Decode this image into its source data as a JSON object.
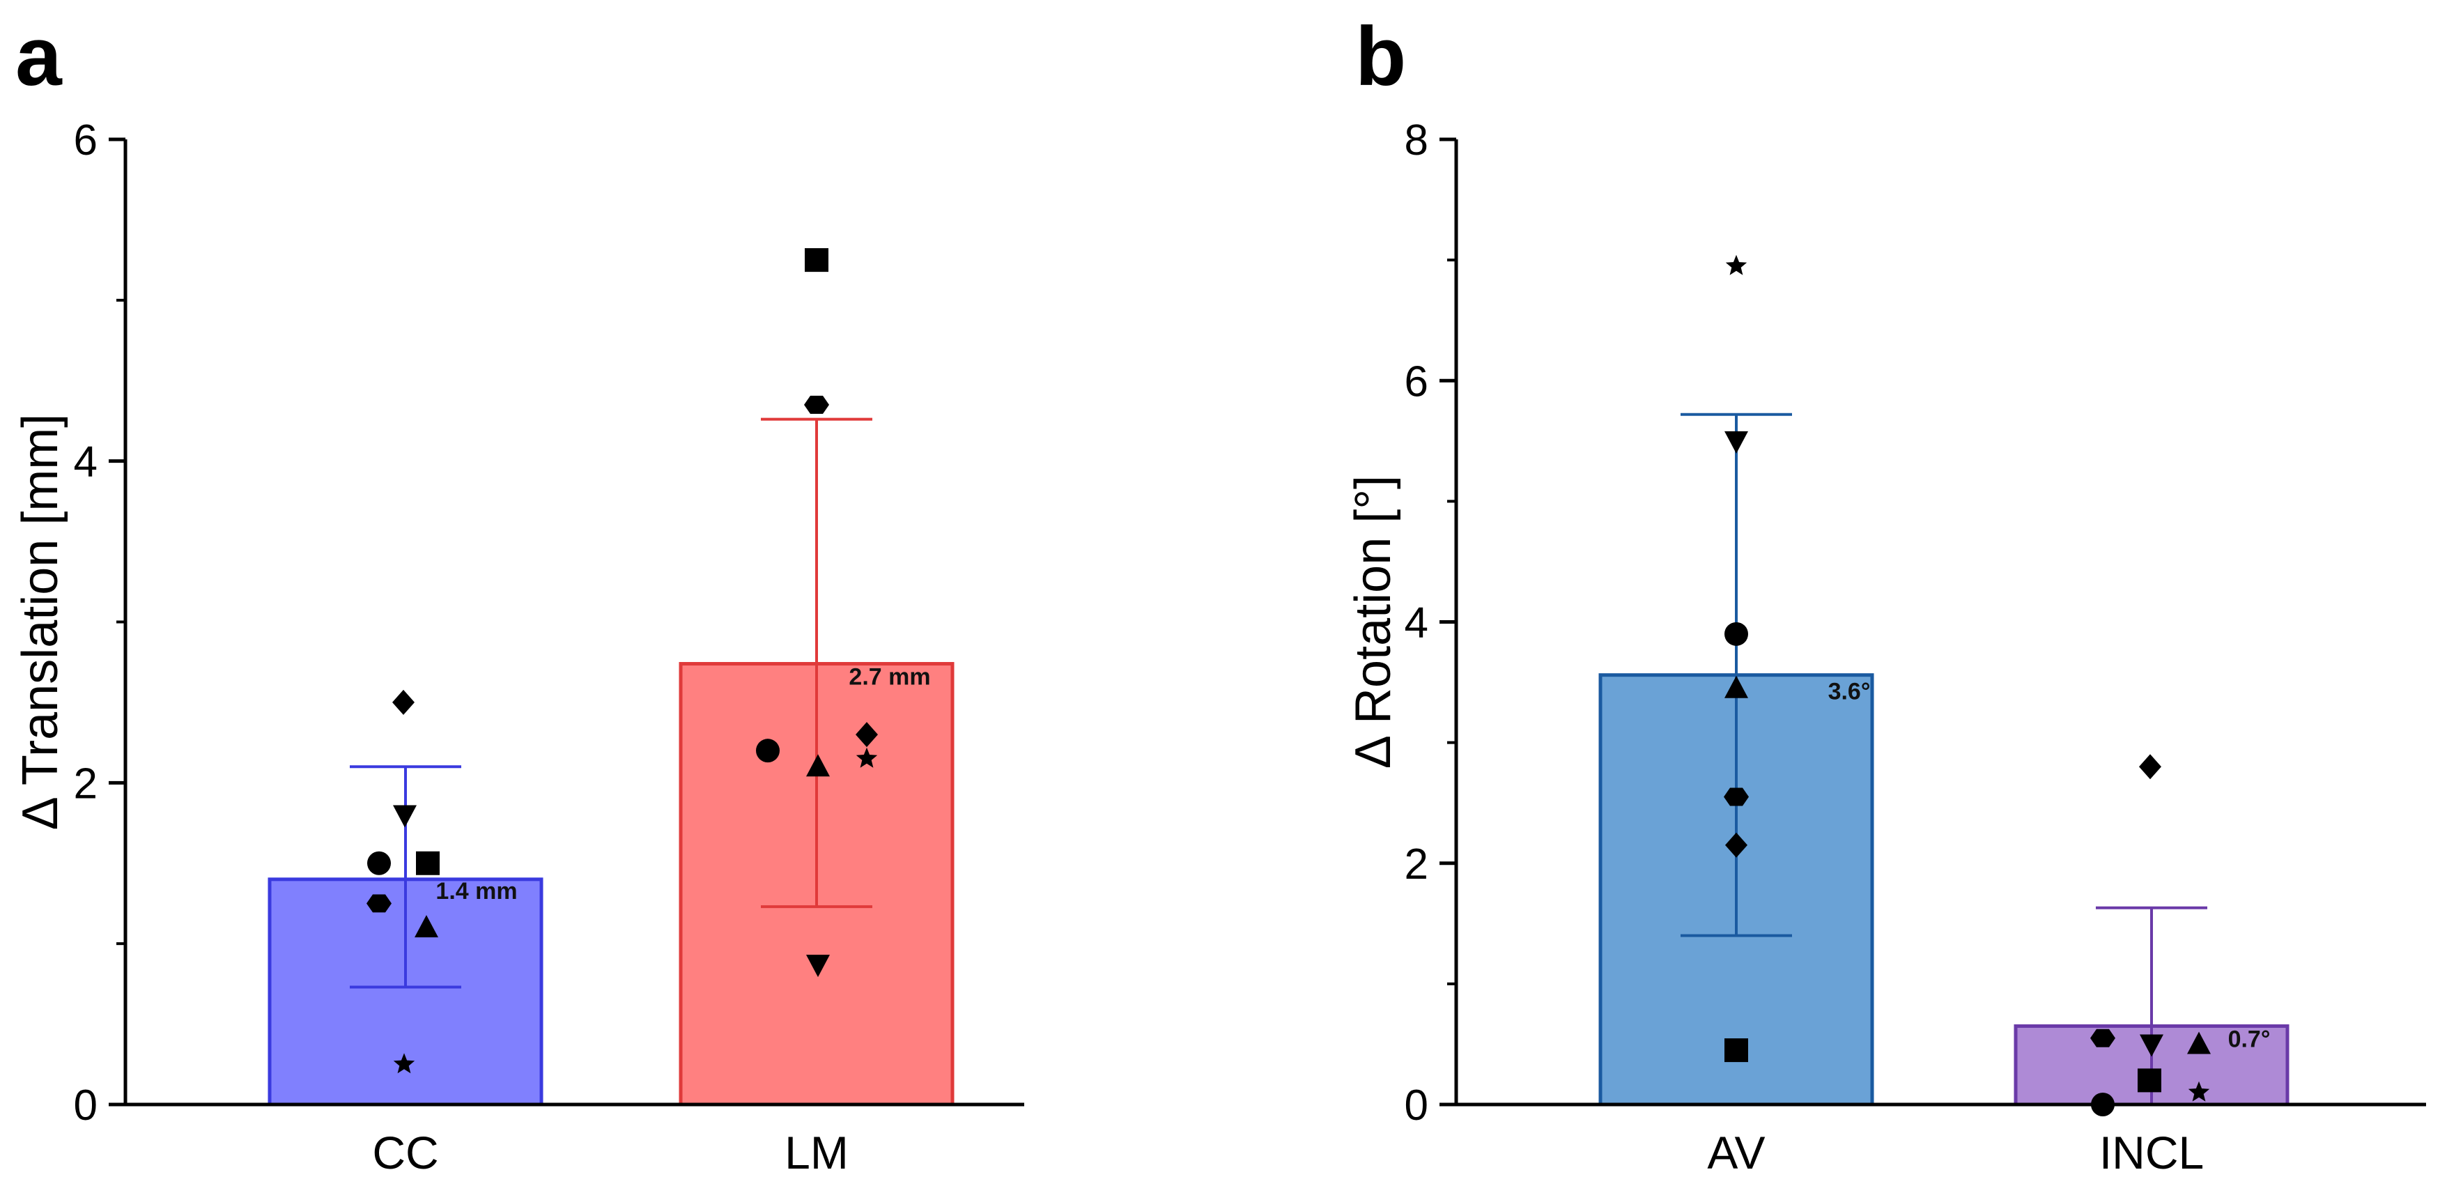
{
  "chart_data": [
    {
      "panel": "a",
      "type": "bar",
      "ylabel": "Δ Translation [mm]",
      "ylim": [
        0,
        6
      ],
      "yticks": [
        "0",
        "2",
        "4",
        "6"
      ],
      "grid": false,
      "categories": [
        "CC",
        "LM"
      ],
      "bars": [
        {
          "category": "CC",
          "value": 1.4,
          "error_low": 0.73,
          "error_high": 2.1,
          "label": "1.4 mm",
          "fill": "#8080fe",
          "stroke": "#3a3adf",
          "points": [
            {
              "marker": "diamond",
              "value": 2.5
            },
            {
              "marker": "triangle-down",
              "value": 1.8
            },
            {
              "marker": "circle",
              "value": 1.5
            },
            {
              "marker": "square",
              "value": 1.5
            },
            {
              "marker": "hexagon",
              "value": 1.25
            },
            {
              "marker": "triangle-up",
              "value": 1.1
            },
            {
              "marker": "star",
              "value": 0.25
            }
          ]
        },
        {
          "category": "LM",
          "value": 2.74,
          "error_low": 1.23,
          "error_high": 4.26,
          "label": "2.7 mm",
          "fill": "#ff8080",
          "stroke": "#e03a3a",
          "points": [
            {
              "marker": "square",
              "value": 5.25
            },
            {
              "marker": "hexagon",
              "value": 4.35
            },
            {
              "marker": "diamond",
              "value": 2.3
            },
            {
              "marker": "circle",
              "value": 2.2
            },
            {
              "marker": "star",
              "value": 2.15
            },
            {
              "marker": "triangle-up",
              "value": 2.1
            },
            {
              "marker": "triangle-down",
              "value": 0.87
            }
          ]
        }
      ]
    },
    {
      "panel": "b",
      "type": "bar",
      "ylabel": "Δ Rotation [°]",
      "ylim": [
        0,
        8
      ],
      "yticks": [
        "0",
        "2",
        "4",
        "6",
        "8"
      ],
      "grid": false,
      "categories": [
        "AV",
        "INCL"
      ],
      "bars": [
        {
          "category": "AV",
          "value": 3.56,
          "error_low": 1.4,
          "error_high": 5.72,
          "label": "3.6°",
          "fill": "#6aa2d6",
          "stroke": "#1a5aa0",
          "points": [
            {
              "marker": "star",
              "value": 6.95
            },
            {
              "marker": "triangle-down",
              "value": 5.5
            },
            {
              "marker": "circle",
              "value": 3.9
            },
            {
              "marker": "triangle-up",
              "value": 3.45
            },
            {
              "marker": "hexagon",
              "value": 2.55
            },
            {
              "marker": "diamond",
              "value": 2.15
            },
            {
              "marker": "square",
              "value": 0.45
            }
          ]
        },
        {
          "category": "INCL",
          "value": 0.65,
          "error_low": 0,
          "error_high": 1.63,
          "label": "0.7°",
          "fill": "#ae8ad6",
          "stroke": "#6a3aa8",
          "points": [
            {
              "marker": "diamond",
              "value": 2.8
            },
            {
              "marker": "hexagon",
              "value": 0.55
            },
            {
              "marker": "triangle-down",
              "value": 0.5
            },
            {
              "marker": "triangle-up",
              "value": 0.5
            },
            {
              "marker": "square",
              "value": 0.2
            },
            {
              "marker": "star",
              "value": 0.1
            },
            {
              "marker": "circle",
              "value": 0.0
            }
          ]
        }
      ]
    }
  ]
}
